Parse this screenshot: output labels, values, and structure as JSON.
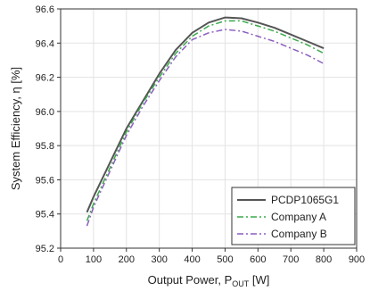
{
  "chart_data": {
    "type": "line",
    "title": "",
    "xlabel_main": "Output Power, P",
    "xlabel_sub": "OUT",
    "xlabel_unit": " [W]",
    "ylabel": "System Efficiency, η [%]",
    "xlim": [
      0,
      900
    ],
    "ylim": [
      95.2,
      96.6
    ],
    "x_ticks": [
      0,
      100,
      200,
      300,
      400,
      500,
      600,
      700,
      800,
      900
    ],
    "y_ticks": [
      95.2,
      95.4,
      95.6,
      95.8,
      96.0,
      96.2,
      96.4,
      96.6
    ],
    "y_tick_labels": [
      "95.2",
      "95.4",
      "95.6",
      "95.8",
      "96.0",
      "96.2",
      "96.4",
      "96.6"
    ],
    "grid": true,
    "legend_position": "bottom-right",
    "series": [
      {
        "name": "PCDP1065G1",
        "color": "#555555",
        "dash": "solid",
        "x": [
          80,
          100,
          150,
          200,
          250,
          300,
          350,
          400,
          450,
          500,
          550,
          600,
          650,
          700,
          750,
          800
        ],
        "y": [
          95.41,
          95.5,
          95.7,
          95.9,
          96.06,
          96.22,
          96.36,
          96.46,
          96.52,
          96.55,
          96.545,
          96.52,
          96.49,
          96.45,
          96.41,
          96.37
        ]
      },
      {
        "name": "Company A",
        "color": "#3aaa4a",
        "dash": "dashdot",
        "x": [
          80,
          100,
          150,
          200,
          250,
          300,
          350,
          400,
          450,
          500,
          550,
          600,
          650,
          700,
          750,
          800
        ],
        "y": [
          95.36,
          95.46,
          95.67,
          95.88,
          96.05,
          96.2,
          96.34,
          96.44,
          96.5,
          96.53,
          96.53,
          96.5,
          96.47,
          96.43,
          96.39,
          96.34
        ]
      },
      {
        "name": "Company B",
        "color": "#8a5fbf",
        "dash": "dashdot",
        "x": [
          80,
          100,
          150,
          200,
          250,
          300,
          350,
          400,
          450,
          500,
          550,
          600,
          650,
          700,
          750,
          800
        ],
        "y": [
          95.33,
          95.44,
          95.65,
          95.86,
          96.03,
          96.18,
          96.32,
          96.42,
          96.46,
          96.48,
          96.47,
          96.44,
          96.41,
          96.37,
          96.33,
          96.28
        ]
      }
    ]
  }
}
